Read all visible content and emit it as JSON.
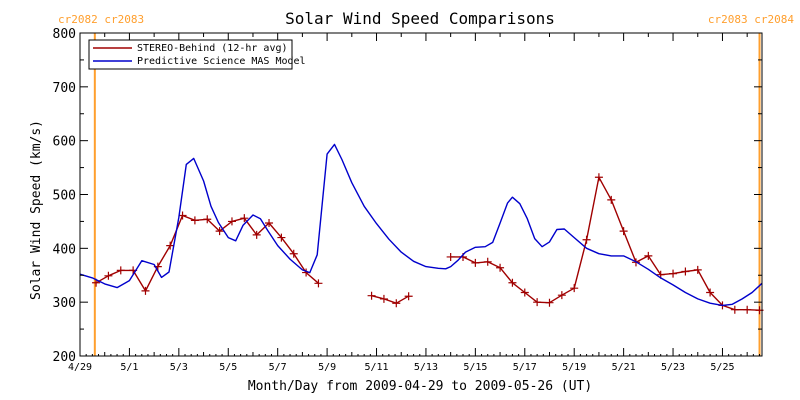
{
  "chart_data": {
    "type": "line",
    "title": "Solar Wind Speed Comparisons",
    "xlabel": "Month/Day from 2009-04-29 to 2009-05-26 (UT)",
    "ylabel": "Solar Wind Speed (km/s)",
    "ylim": [
      200,
      800
    ],
    "xlim": [
      0,
      27.6
    ],
    "x_ticks": [
      {
        "x": 0,
        "label": "4/29"
      },
      {
        "x": 2,
        "label": "5/1"
      },
      {
        "x": 4,
        "label": "5/3"
      },
      {
        "x": 6,
        "label": "5/5"
      },
      {
        "x": 8,
        "label": "5/7"
      },
      {
        "x": 10,
        "label": "5/9"
      },
      {
        "x": 12,
        "label": "5/11"
      },
      {
        "x": 14,
        "label": "5/13"
      },
      {
        "x": 16,
        "label": "5/15"
      },
      {
        "x": 18,
        "label": "5/17"
      },
      {
        "x": 20,
        "label": "5/19"
      },
      {
        "x": 22,
        "label": "5/21"
      },
      {
        "x": 24,
        "label": "5/23"
      },
      {
        "x": 26,
        "label": "5/25"
      }
    ],
    "y_ticks": [
      200,
      300,
      400,
      500,
      600,
      700,
      800
    ],
    "grid": false,
    "legend": "top-left",
    "cr_markers": {
      "color": "#ff9f2e",
      "left_label": "cr2082 cr2083",
      "right_label": "cr2083 cr2084",
      "left_x": 0.6,
      "right_x": 27.5
    },
    "series": [
      {
        "name": "STEREO-Behind (12-hr avg)",
        "color": "#a00000",
        "marker": "+",
        "segments": [
          [
            [
              0.65,
              336
            ],
            [
              1.15,
              349
            ],
            [
              1.65,
              359
            ],
            [
              2.15,
              359
            ],
            [
              2.65,
              321
            ],
            [
              3.15,
              366
            ],
            [
              3.65,
              405
            ],
            [
              4.15,
              461
            ],
            [
              4.65,
              452
            ],
            [
              5.15,
              454
            ],
            [
              5.65,
              432
            ],
            [
              6.15,
              450
            ],
            [
              6.65,
              456
            ],
            [
              7.15,
              425
            ],
            [
              7.65,
              447
            ],
            [
              8.15,
              420
            ],
            [
              8.65,
              390
            ],
            [
              9.15,
              355
            ],
            [
              9.65,
              335
            ]
          ],
          [
            [
              11.8,
              312
            ],
            [
              12.3,
              306
            ],
            [
              12.8,
              298
            ],
            [
              13.3,
              311
            ]
          ],
          [
            [
              15.0,
              384
            ],
            [
              15.5,
              384
            ],
            [
              16.0,
              373
            ],
            [
              16.5,
              375
            ],
            [
              17.0,
              364
            ],
            [
              17.5,
              336
            ],
            [
              18.0,
              318
            ],
            [
              18.5,
              300
            ],
            [
              19.0,
              299
            ],
            [
              19.5,
              313
            ],
            [
              20.0,
              326
            ],
            [
              20.5,
              416
            ],
            [
              21.0,
              532
            ],
            [
              21.5,
              490
            ],
            [
              22.0,
              432
            ],
            [
              22.5,
              374
            ],
            [
              23.0,
              386
            ],
            [
              23.5,
              351
            ],
            [
              24.0,
              353
            ],
            [
              24.5,
              357
            ],
            [
              25.0,
              360
            ],
            [
              25.5,
              318
            ],
            [
              26.0,
              294
            ],
            [
              26.5,
              286
            ],
            [
              27.0,
              286
            ],
            [
              27.5,
              285
            ]
          ]
        ]
      },
      {
        "name": "Predictive Science MAS Model",
        "color": "#0000cc",
        "marker": "none",
        "segments": [
          [
            [
              0.0,
              352
            ],
            [
              0.5,
              345
            ],
            [
              1.0,
              334
            ],
            [
              1.5,
              327
            ],
            [
              2.0,
              340
            ],
            [
              2.5,
              377
            ],
            [
              3.0,
              370
            ],
            [
              3.3,
              346
            ],
            [
              3.6,
              356
            ],
            [
              4.0,
              457
            ],
            [
              4.3,
              556
            ],
            [
              4.6,
              567
            ],
            [
              5.0,
              525
            ],
            [
              5.3,
              478
            ],
            [
              5.6,
              448
            ],
            [
              6.0,
              420
            ],
            [
              6.3,
              414
            ],
            [
              6.6,
              443
            ],
            [
              7.0,
              462
            ],
            [
              7.3,
              455
            ],
            [
              7.6,
              433
            ],
            [
              8.0,
              405
            ],
            [
              8.5,
              380
            ],
            [
              9.0,
              360
            ],
            [
              9.3,
              355
            ],
            [
              9.6,
              388
            ],
            [
              10.0,
              575
            ],
            [
              10.3,
              593
            ],
            [
              10.6,
              565
            ],
            [
              11.0,
              522
            ],
            [
              11.5,
              478
            ],
            [
              12.0,
              446
            ],
            [
              12.5,
              417
            ],
            [
              13.0,
              393
            ],
            [
              13.5,
              376
            ],
            [
              14.0,
              366
            ],
            [
              14.5,
              363
            ],
            [
              14.8,
              362
            ],
            [
              15.0,
              366
            ],
            [
              15.3,
              378
            ],
            [
              15.6,
              393
            ],
            [
              16.0,
              402
            ],
            [
              16.4,
              403
            ],
            [
              16.7,
              411
            ],
            [
              17.0,
              447
            ],
            [
              17.3,
              484
            ],
            [
              17.5,
              495
            ],
            [
              17.8,
              483
            ],
            [
              18.1,
              455
            ],
            [
              18.4,
              418
            ],
            [
              18.7,
              403
            ],
            [
              19.0,
              412
            ],
            [
              19.3,
              435
            ],
            [
              19.6,
              436
            ],
            [
              20.0,
              420
            ],
            [
              20.5,
              400
            ],
            [
              21.0,
              390
            ],
            [
              21.5,
              386
            ],
            [
              22.0,
              386
            ],
            [
              22.5,
              375
            ],
            [
              23.0,
              361
            ],
            [
              23.5,
              345
            ],
            [
              24.0,
              332
            ],
            [
              24.5,
              318
            ],
            [
              25.0,
              306
            ],
            [
              25.5,
              298
            ],
            [
              26.0,
              294
            ],
            [
              26.4,
              296
            ],
            [
              26.8,
              306
            ],
            [
              27.2,
              318
            ],
            [
              27.6,
              335
            ]
          ]
        ]
      }
    ]
  }
}
